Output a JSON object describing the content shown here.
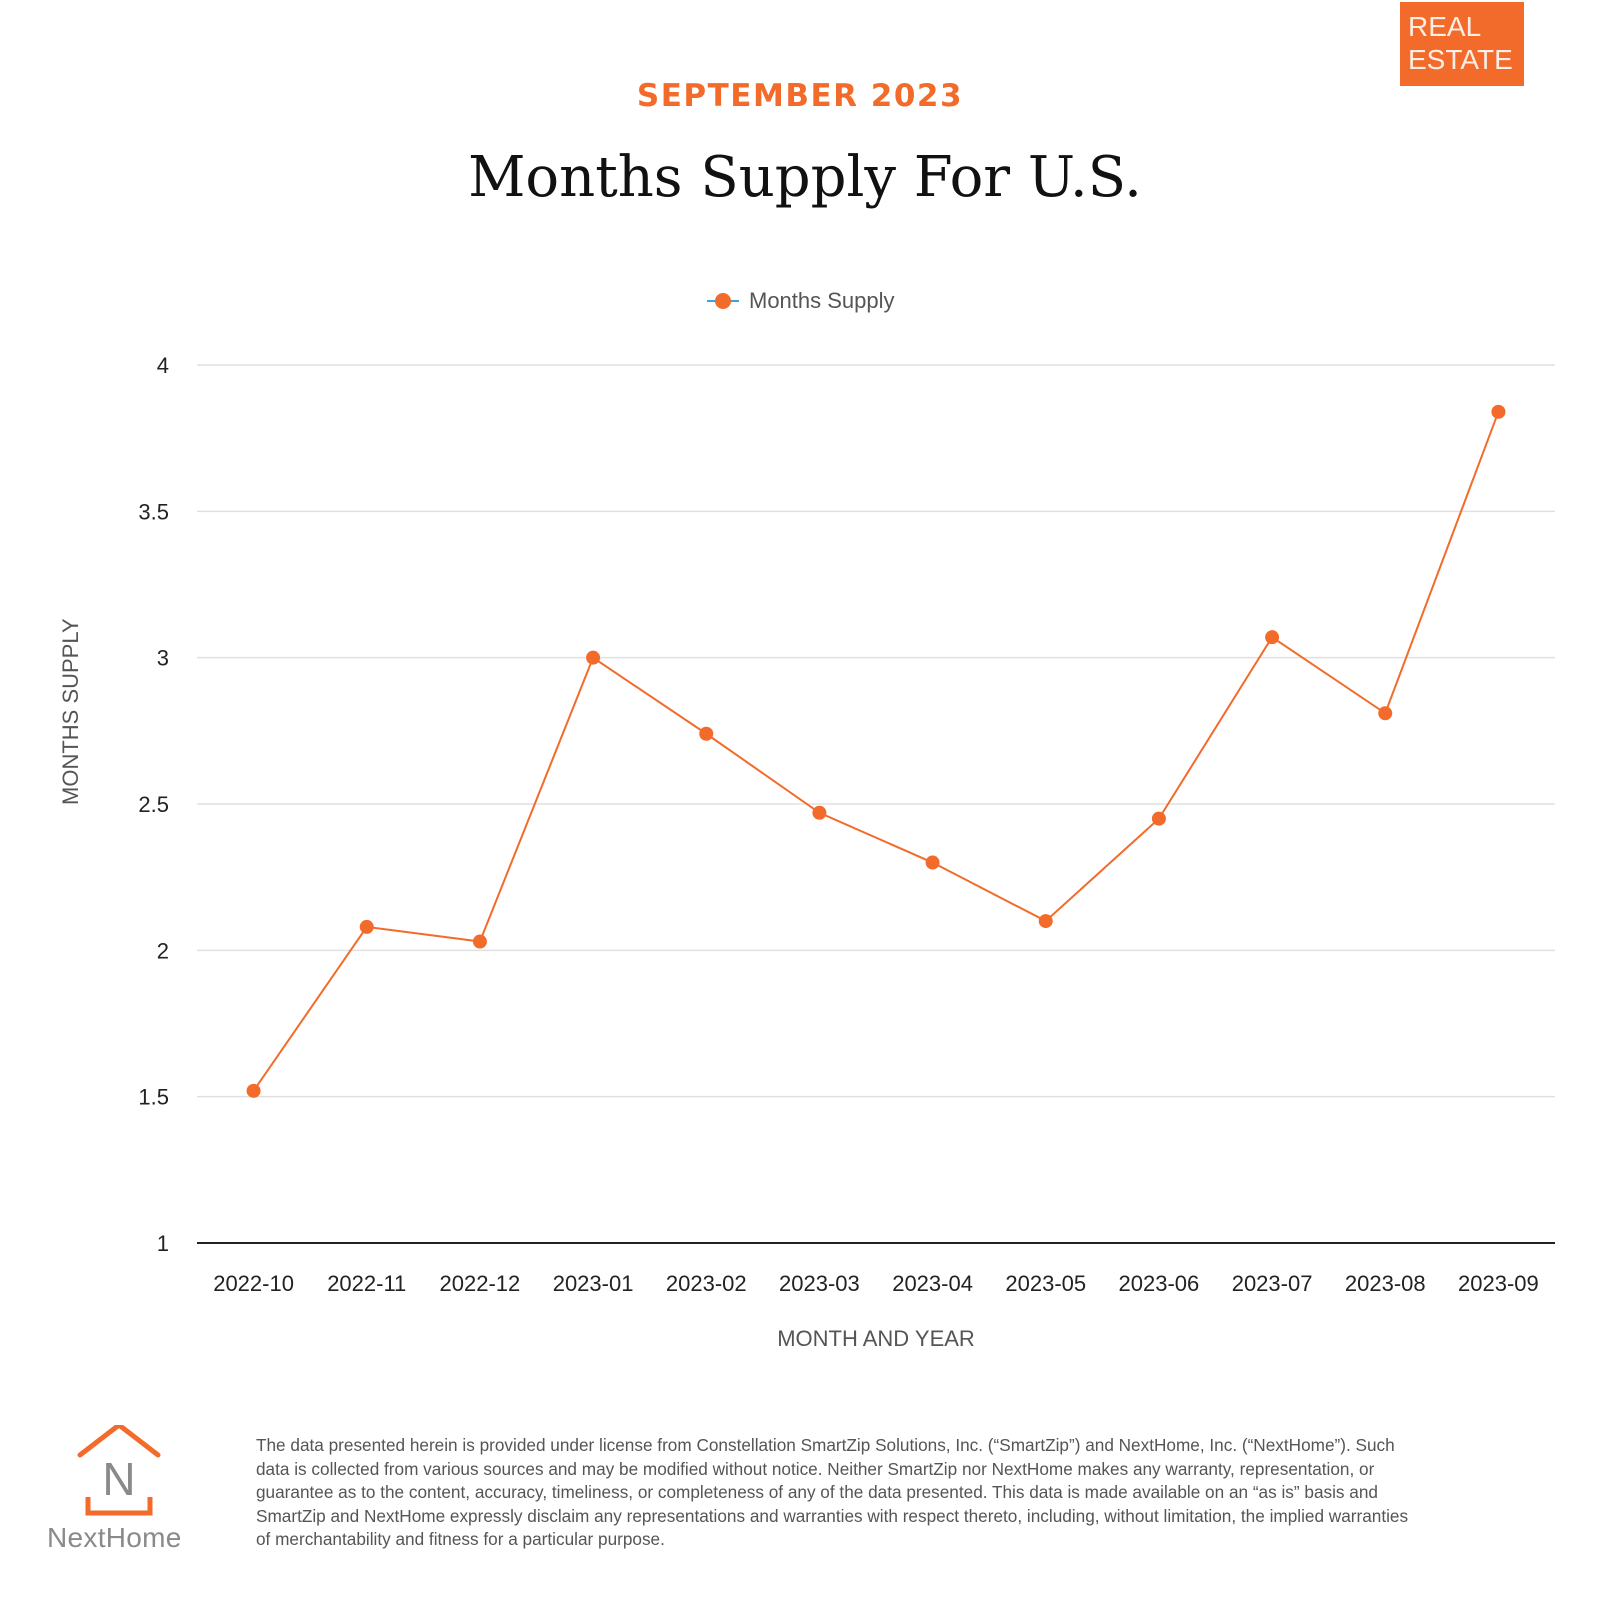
{
  "badge": {
    "line1": "REAL",
    "line2": "ESTATE"
  },
  "header": {
    "month": "SEPTEMBER 2023",
    "title": "Months Supply For U.S."
  },
  "colors": {
    "accent": "#f26b2a",
    "legend_line": "#3ba3d9",
    "grid": "#e0e0e0",
    "axis": "#222222",
    "text_muted": "#555555"
  },
  "chart_data": {
    "type": "line",
    "title": "Months Supply For U.S.",
    "xlabel": "MONTH AND YEAR",
    "ylabel": "MONTHS SUPPLY",
    "categories": [
      "2022-10",
      "2022-11",
      "2022-12",
      "2023-01",
      "2023-02",
      "2023-03",
      "2023-04",
      "2023-05",
      "2023-06",
      "2023-07",
      "2023-08",
      "2023-09"
    ],
    "series": [
      {
        "name": "Months Supply",
        "values": [
          1.52,
          2.08,
          2.03,
          3.0,
          2.74,
          2.47,
          2.3,
          2.1,
          2.45,
          3.07,
          2.81,
          3.84
        ]
      }
    ],
    "ylim": [
      1,
      4
    ],
    "yticks": [
      "1",
      "1.5",
      "2",
      "2.5",
      "3",
      "3.5",
      "4"
    ],
    "grid": true,
    "legend": "top-center"
  },
  "logo": {
    "text": "NextHome",
    "letter": "N"
  },
  "footer": {
    "disclaimer": "The data presented herein is provided under license from Constellation SmartZip Solutions, Inc. (“SmartZip”) and NextHome, Inc. (“NextHome”). Such data is collected from various sources and may be modified without notice. Neither SmartZip nor NextHome makes any warranty, representation, or guarantee as to the content, accuracy, timeliness, or completeness of any of the data presented. This data is made available on an “as is” basis and SmartZip and NextHome expressly disclaim any representations and warranties with respect thereto, including, without limitation, the implied warranties of merchantability and fitness for a particular purpose."
  }
}
